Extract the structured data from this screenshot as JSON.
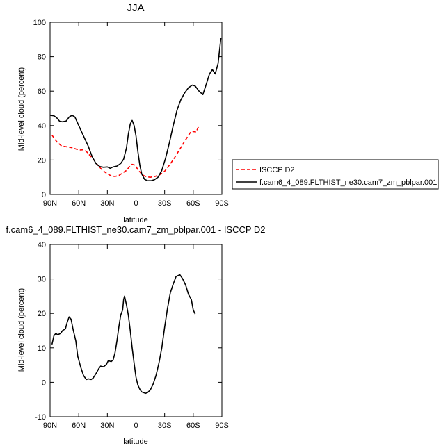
{
  "chart_data": [
    {
      "type": "line",
      "title": "JJA",
      "xlabel": "latitude",
      "ylabel": "Mid-level cloud (percent)",
      "xlim": [
        90,
        -90
      ],
      "ylim": [
        0,
        100
      ],
      "xticks": [
        {
          "value": 90,
          "label": "90N"
        },
        {
          "value": 60,
          "label": "60N"
        },
        {
          "value": 30,
          "label": "30N"
        },
        {
          "value": 0,
          "label": "0"
        },
        {
          "value": -30,
          "label": "30S"
        },
        {
          "value": -60,
          "label": "60S"
        },
        {
          "value": -90,
          "label": "90S"
        }
      ],
      "yticks": [
        0,
        20,
        40,
        60,
        80,
        100
      ],
      "legend_position": "right",
      "series": [
        {
          "name": "ISCCP D2",
          "color": "#ff0000",
          "dash": "dashed",
          "points": [
            [
              88,
              34.5
            ],
            [
              85,
              32
            ],
            [
              82,
              30
            ],
            [
              78,
              28.2
            ],
            [
              74,
              27.8
            ],
            [
              70,
              27.5
            ],
            [
              66,
              27
            ],
            [
              62,
              26.2
            ],
            [
              58,
              25.8
            ],
            [
              55,
              26
            ],
            [
              52,
              25
            ],
            [
              48,
              22.5
            ],
            [
              44,
              20
            ],
            [
              40,
              17
            ],
            [
              35,
              14
            ],
            [
              30,
              12
            ],
            [
              26,
              10.8
            ],
            [
              22,
              10.5
            ],
            [
              18,
              11
            ],
            [
              14,
              12.5
            ],
            [
              10,
              14
            ],
            [
              7,
              16
            ],
            [
              4,
              17.5
            ],
            [
              1,
              17
            ],
            [
              -2,
              14.5
            ],
            [
              -5,
              12.5
            ],
            [
              -8,
              11
            ],
            [
              -11,
              10.3
            ],
            [
              -15,
              10
            ],
            [
              -20,
              10.5
            ],
            [
              -25,
              11.5
            ],
            [
              -30,
              13.5
            ],
            [
              -35,
              17
            ],
            [
              -40,
              21
            ],
            [
              -45,
              25.5
            ],
            [
              -50,
              30
            ],
            [
              -54,
              33.5
            ],
            [
              -57,
              36
            ],
            [
              -60,
              36.5
            ],
            [
              -63,
              36.3
            ],
            [
              -66,
              40
            ]
          ]
        },
        {
          "name": "f.cam6_4_089.FLTHIST_ne30.cam7_zm_pblpar.001",
          "color": "#000000",
          "dash": "solid",
          "points": [
            [
              90,
              46
            ],
            [
              86,
              45.7
            ],
            [
              83,
              44.5
            ],
            [
              80,
              42.5
            ],
            [
              77,
              42.2
            ],
            [
              73,
              42.7
            ],
            [
              70,
              45
            ],
            [
              67,
              46
            ],
            [
              64,
              45
            ],
            [
              60,
              40
            ],
            [
              55,
              34
            ],
            [
              50,
              28
            ],
            [
              46,
              22
            ],
            [
              42,
              18
            ],
            [
              38,
              16.2
            ],
            [
              34,
              15.8
            ],
            [
              30,
              16
            ],
            [
              27,
              15.2
            ],
            [
              24,
              16
            ],
            [
              20,
              16.5
            ],
            [
              16,
              18
            ],
            [
              13,
              20.5
            ],
            [
              10,
              27
            ],
            [
              8,
              35
            ],
            [
              6,
              41
            ],
            [
              4,
              43
            ],
            [
              2,
              40
            ],
            [
              0,
              34
            ],
            [
              -2,
              25
            ],
            [
              -4,
              17
            ],
            [
              -6,
              12
            ],
            [
              -9,
              8.8
            ],
            [
              -12,
              8
            ],
            [
              -16,
              8
            ],
            [
              -19,
              8.5
            ],
            [
              -23,
              10
            ],
            [
              -27,
              14
            ],
            [
              -31,
              21
            ],
            [
              -35,
              30
            ],
            [
              -39,
              40
            ],
            [
              -43,
              49
            ],
            [
              -47,
              55
            ],
            [
              -51,
              59
            ],
            [
              -55,
              62
            ],
            [
              -59,
              63.5
            ],
            [
              -62,
              63
            ],
            [
              -66,
              60
            ],
            [
              -70,
              58
            ],
            [
              -73,
              63
            ],
            [
              -77,
              70
            ],
            [
              -80,
              72.5
            ],
            [
              -83,
              70
            ],
            [
              -86,
              76
            ],
            [
              -89,
              91
            ]
          ]
        }
      ]
    },
    {
      "type": "line",
      "title": "f.cam6_4_089.FLTHIST_ne30.cam7_zm_pblpar.001 - ISCCP D2",
      "xlabel": "latitude",
      "ylabel": "Mid-level cloud (percent)",
      "xlim": [
        90,
        -90
      ],
      "ylim": [
        -10,
        40
      ],
      "xticks": [
        {
          "value": 90,
          "label": "90N"
        },
        {
          "value": 60,
          "label": "60N"
        },
        {
          "value": 30,
          "label": "30N"
        },
        {
          "value": 0,
          "label": "0"
        },
        {
          "value": -30,
          "label": "30S"
        },
        {
          "value": -60,
          "label": "60S"
        },
        {
          "value": -90,
          "label": "90S"
        }
      ],
      "yticks": [
        -10,
        0,
        10,
        20,
        30,
        40
      ],
      "series": [
        {
          "color": "#000000",
          "dash": "solid",
          "points": [
            [
              88,
              11
            ],
            [
              86,
              13.5
            ],
            [
              84,
              14.2
            ],
            [
              82,
              13.8
            ],
            [
              79,
              14.2
            ],
            [
              77,
              15
            ],
            [
              74,
              15.5
            ],
            [
              72,
              17.5
            ],
            [
              70,
              19
            ],
            [
              68,
              18.3
            ],
            [
              66,
              15.5
            ],
            [
              63,
              12
            ],
            [
              61,
              7.5
            ],
            [
              58,
              4.5
            ],
            [
              55,
              2
            ],
            [
              52,
              0.8
            ],
            [
              50,
              1
            ],
            [
              47,
              0.8
            ],
            [
              45,
              1.2
            ],
            [
              42,
              2.5
            ],
            [
              39,
              4
            ],
            [
              37,
              4.7
            ],
            [
              34,
              4.5
            ],
            [
              31,
              5.2
            ],
            [
              29,
              6.3
            ],
            [
              26,
              6
            ],
            [
              24,
              6.5
            ],
            [
              22,
              8.5
            ],
            [
              20,
              12
            ],
            [
              18,
              16
            ],
            [
              16,
              19.5
            ],
            [
              14,
              21
            ],
            [
              13,
              24
            ],
            [
              12,
              25
            ],
            [
              10,
              22.5
            ],
            [
              8,
              19.5
            ],
            [
              6,
              15
            ],
            [
              4,
              10
            ],
            [
              2,
              5.5
            ],
            [
              0,
              1.5
            ],
            [
              -2,
              -0.8
            ],
            [
              -4,
              -2
            ],
            [
              -6,
              -2.8
            ],
            [
              -8,
              -3
            ],
            [
              -10,
              -3.2
            ],
            [
              -12,
              -3
            ],
            [
              -15,
              -2.2
            ],
            [
              -18,
              -0.5
            ],
            [
              -21,
              2
            ],
            [
              -24,
              5.5
            ],
            [
              -27,
              10
            ],
            [
              -30,
              16
            ],
            [
              -33,
              21.5
            ],
            [
              -36,
              26
            ],
            [
              -39,
              28.5
            ],
            [
              -42,
              30.7
            ],
            [
              -46,
              31.2
            ],
            [
              -49,
              30
            ],
            [
              -52,
              28.2
            ],
            [
              -55,
              25.5
            ],
            [
              -58,
              24
            ],
            [
              -60,
              21
            ],
            [
              -62,
              19.8
            ]
          ]
        }
      ]
    }
  ]
}
